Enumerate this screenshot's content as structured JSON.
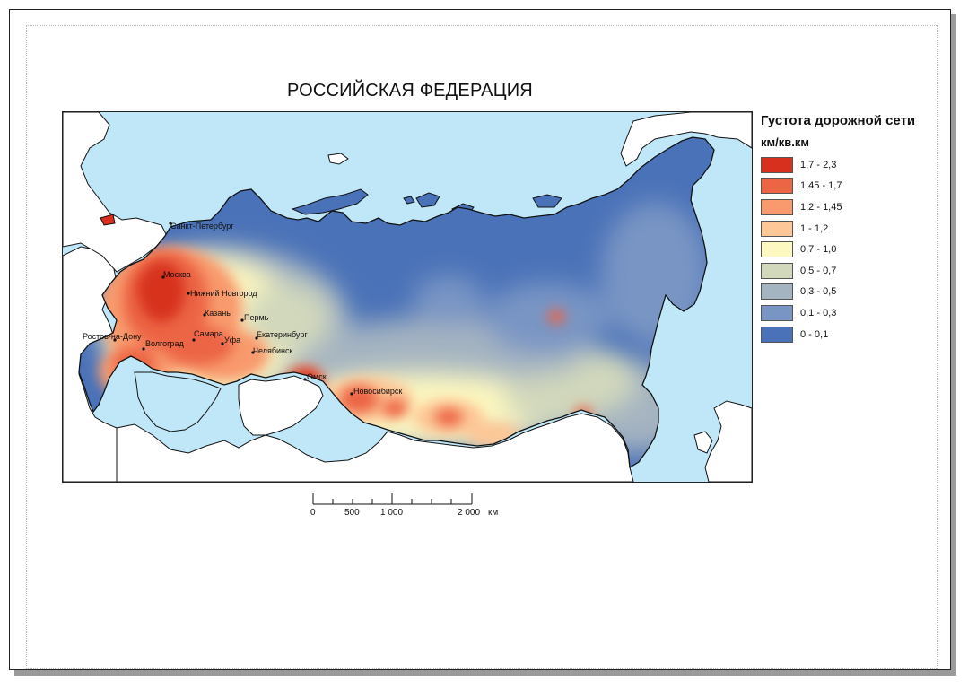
{
  "map": {
    "title": "РОССИЙСКАЯ ФЕДЕРАЦИЯ",
    "cities": [
      {
        "name": "Санкт-Петербург"
      },
      {
        "name": "Москва"
      },
      {
        "name": "Нижний Новгород"
      },
      {
        "name": "Казань"
      },
      {
        "name": "Пермь"
      },
      {
        "name": "Самара"
      },
      {
        "name": "Уфа"
      },
      {
        "name": "Екатеринбург"
      },
      {
        "name": "Челябинск"
      },
      {
        "name": "Ростов-на-Дону"
      },
      {
        "name": "Волгоград"
      },
      {
        "name": "Омск"
      },
      {
        "name": "Новосибирск"
      }
    ],
    "colors": {
      "sea": "#bfe7f8",
      "land_outside": "#ffffff",
      "border": "#111111"
    }
  },
  "legend": {
    "title": "Густота дорожной сети",
    "unit": "км/кв.км",
    "items": [
      {
        "label": "1,7 - 2,3",
        "color": "#d7301f"
      },
      {
        "label": "1,45 - 1,7",
        "color": "#ec6545"
      },
      {
        "label": "1,2 - 1,45",
        "color": "#f89a6d"
      },
      {
        "label": "1 - 1,2",
        "color": "#fdc797"
      },
      {
        "label": "0,7 - 1,0",
        "color": "#fdf8c0"
      },
      {
        "label": "0,5 - 0,7",
        "color": "#d2d8bc"
      },
      {
        "label": "0,3 - 0,5",
        "color": "#a5b4c1"
      },
      {
        "label": "0,1 - 0,3",
        "color": "#7995c4"
      },
      {
        "label": "0 - 0,1",
        "color": "#4a72b8"
      }
    ]
  },
  "scale": {
    "ticks": [
      "0",
      "500",
      "1 000",
      "2 000"
    ],
    "unit": "км"
  }
}
